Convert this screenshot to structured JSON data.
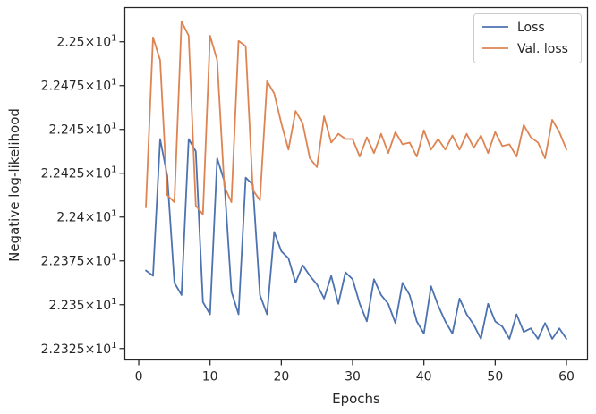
{
  "chart_data": {
    "type": "line",
    "xlabel": "Epochs",
    "ylabel": "Negative log-likelihood",
    "xlim": [
      -1.95,
      62.95
    ],
    "ylim": [
      22.3185,
      22.5195
    ],
    "xticks": [
      0,
      10,
      20,
      30,
      40,
      50,
      60
    ],
    "yticks": [
      22.325,
      22.35,
      22.375,
      22.4,
      22.425,
      22.45,
      22.475,
      22.5
    ],
    "ytick_labels": [
      {
        "mantissa": "2.2325",
        "exponent": "1"
      },
      {
        "mantissa": "2.235",
        "exponent": "1"
      },
      {
        "mantissa": "2.2375",
        "exponent": "1"
      },
      {
        "mantissa": "2.24",
        "exponent": "1"
      },
      {
        "mantissa": "2.2425",
        "exponent": "1"
      },
      {
        "mantissa": "2.245",
        "exponent": "1"
      },
      {
        "mantissa": "2.2475",
        "exponent": "1"
      },
      {
        "mantissa": "2.25",
        "exponent": "1"
      }
    ],
    "legend_position": "top-right",
    "x": [
      1,
      2,
      3,
      4,
      5,
      6,
      7,
      8,
      9,
      10,
      11,
      12,
      13,
      14,
      15,
      16,
      17,
      18,
      19,
      20,
      21,
      22,
      23,
      24,
      25,
      26,
      27,
      28,
      29,
      30,
      31,
      32,
      33,
      34,
      35,
      36,
      37,
      38,
      39,
      40,
      41,
      42,
      43,
      44,
      45,
      46,
      47,
      48,
      49,
      50,
      51,
      52,
      53,
      54,
      55,
      56,
      57,
      58,
      59,
      60
    ],
    "series": [
      {
        "name": "Loss",
        "color": "#4c72b0",
        "values": [
          22.3695,
          22.3665,
          22.4445,
          22.4235,
          22.3625,
          22.3555,
          22.4445,
          22.4375,
          22.3515,
          22.3445,
          22.4335,
          22.4205,
          22.3575,
          22.3445,
          22.4225,
          22.4185,
          22.3555,
          22.3445,
          22.3915,
          22.3805,
          22.3765,
          22.3625,
          22.3725,
          22.3665,
          22.3615,
          22.3535,
          22.3665,
          22.3505,
          22.3685,
          22.3645,
          22.3505,
          22.3405,
          22.3645,
          22.3555,
          22.3505,
          22.3395,
          22.3625,
          22.3555,
          22.3405,
          22.3335,
          22.3605,
          22.3495,
          22.3405,
          22.3335,
          22.3535,
          22.3445,
          22.3385,
          22.3305,
          22.3505,
          22.3405,
          22.3375,
          22.3305,
          22.3445,
          22.3345,
          22.3365,
          22.3305,
          22.3395,
          22.3305,
          22.3365,
          22.3305
        ]
      },
      {
        "name": "Val. loss",
        "color": "#dd8452",
        "values": [
          22.4055,
          22.5025,
          22.4895,
          22.4125,
          22.4085,
          22.5115,
          22.5035,
          22.4065,
          22.4015,
          22.5035,
          22.4895,
          22.4175,
          22.4085,
          22.5005,
          22.4975,
          22.4155,
          22.4095,
          22.4775,
          22.4705,
          22.4535,
          22.4385,
          22.4605,
          22.4535,
          22.4335,
          22.4285,
          22.4575,
          22.4425,
          22.4475,
          22.4445,
          22.4445,
          22.4345,
          22.4455,
          22.4365,
          22.4475,
          22.4365,
          22.4485,
          22.4415,
          22.4425,
          22.4345,
          22.4495,
          22.4385,
          22.4445,
          22.4385,
          22.4465,
          22.4385,
          22.4475,
          22.4395,
          22.4465,
          22.4365,
          22.4485,
          22.4405,
          22.4415,
          22.4345,
          22.4525,
          22.4455,
          22.4425,
          22.4335,
          22.4555,
          22.4485,
          22.4385
        ]
      }
    ]
  }
}
